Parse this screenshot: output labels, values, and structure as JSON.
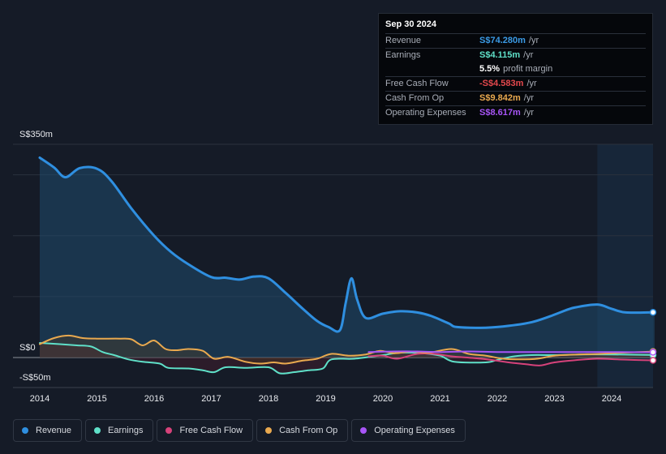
{
  "tooltip": {
    "date": "Sep 30 2024",
    "rows": [
      {
        "label": "Revenue",
        "value": "S$74.280m",
        "unit": "/yr",
        "color": "#3b9be6"
      },
      {
        "label": "Earnings",
        "value": "S$4.115m",
        "unit": "/yr",
        "color": "#5fe0c8"
      },
      {
        "label": "",
        "value": "5.5%",
        "unit": "profit margin",
        "color": "#ffffff"
      },
      {
        "label": "Free Cash Flow",
        "value": "-S$4.583m",
        "unit": "/yr",
        "color": "#e5484d"
      },
      {
        "label": "Cash From Op",
        "value": "S$9.842m",
        "unit": "/yr",
        "color": "#e9a94f"
      },
      {
        "label": "Operating Expenses",
        "value": "S$8.617m",
        "unit": "/yr",
        "color": "#a855f7"
      }
    ]
  },
  "legend": [
    {
      "label": "Revenue",
      "color": "#2f8fe0"
    },
    {
      "label": "Earnings",
      "color": "#5fe0c8"
    },
    {
      "label": "Free Cash Flow",
      "color": "#d6427a"
    },
    {
      "label": "Cash From Op",
      "color": "#e9a94f"
    },
    {
      "label": "Operating Expenses",
      "color": "#a855f7"
    }
  ],
  "chart_data": {
    "type": "line",
    "title": "",
    "ylabel_top": "S$350m",
    "ylabel_zero": "S$0",
    "ylabel_bottom": "-S$50m",
    "ylim": [
      -50,
      350
    ],
    "xlim": [
      2013.5,
      2024.8
    ],
    "x_ticks": [
      "2014",
      "2015",
      "2016",
      "2017",
      "2018",
      "2019",
      "2020",
      "2021",
      "2022",
      "2023",
      "2024"
    ],
    "highlight_from": 2023.75,
    "series": [
      {
        "name": "Revenue",
        "color": "#2f8fe0",
        "fill": true,
        "points": [
          [
            2014.0,
            328
          ],
          [
            2014.25,
            312
          ],
          [
            2014.45,
            296
          ],
          [
            2014.7,
            311
          ],
          [
            2015.0,
            310
          ],
          [
            2015.25,
            290
          ],
          [
            2015.6,
            245
          ],
          [
            2016.0,
            200
          ],
          [
            2016.3,
            173
          ],
          [
            2016.6,
            153
          ],
          [
            2017.0,
            132
          ],
          [
            2017.25,
            131
          ],
          [
            2017.5,
            128
          ],
          [
            2017.75,
            133
          ],
          [
            2018.0,
            130
          ],
          [
            2018.3,
            106
          ],
          [
            2018.6,
            80
          ],
          [
            2018.85,
            60
          ],
          [
            2019.05,
            50
          ],
          [
            2019.25,
            45
          ],
          [
            2019.35,
            90
          ],
          [
            2019.45,
            130
          ],
          [
            2019.55,
            95
          ],
          [
            2019.7,
            65
          ],
          [
            2020.0,
            72
          ],
          [
            2020.3,
            76
          ],
          [
            2020.6,
            74
          ],
          [
            2020.85,
            68
          ],
          [
            2021.15,
            56
          ],
          [
            2021.3,
            50
          ],
          [
            2021.8,
            49
          ],
          [
            2022.2,
            52
          ],
          [
            2022.6,
            58
          ],
          [
            2022.9,
            67
          ],
          [
            2023.1,
            74
          ],
          [
            2023.35,
            82
          ],
          [
            2023.75,
            87
          ],
          [
            2024.0,
            80
          ],
          [
            2024.25,
            74
          ],
          [
            2024.75,
            74.3
          ]
        ]
      },
      {
        "name": "Earnings",
        "color": "#5fe0c8",
        "fill": false,
        "points": [
          [
            2014.0,
            24
          ],
          [
            2014.35,
            22
          ],
          [
            2014.65,
            20
          ],
          [
            2014.9,
            18
          ],
          [
            2015.1,
            9
          ],
          [
            2015.3,
            4
          ],
          [
            2015.55,
            -3
          ],
          [
            2015.8,
            -7
          ],
          [
            2016.1,
            -10
          ],
          [
            2016.25,
            -17
          ],
          [
            2016.6,
            -18
          ],
          [
            2016.85,
            -21
          ],
          [
            2017.05,
            -24
          ],
          [
            2017.25,
            -16
          ],
          [
            2017.6,
            -17
          ],
          [
            2018.0,
            -16
          ],
          [
            2018.2,
            -26
          ],
          [
            2018.45,
            -24
          ],
          [
            2018.7,
            -21
          ],
          [
            2018.95,
            -18
          ],
          [
            2019.1,
            -3
          ],
          [
            2019.5,
            -2
          ],
          [
            2020.0,
            4
          ],
          [
            2020.3,
            8
          ],
          [
            2020.7,
            7
          ],
          [
            2021.0,
            3
          ],
          [
            2021.25,
            -7
          ],
          [
            2021.8,
            -8
          ],
          [
            2022.0,
            -4
          ],
          [
            2022.3,
            2
          ],
          [
            2022.6,
            4
          ],
          [
            2023.0,
            4
          ],
          [
            2023.5,
            5
          ],
          [
            2024.0,
            5
          ],
          [
            2024.75,
            4.1
          ]
        ]
      },
      {
        "name": "Free Cash Flow",
        "color": "#d6427a",
        "fill": false,
        "points": [
          [
            2019.75,
            2
          ],
          [
            2020.0,
            3
          ],
          [
            2020.25,
            -2
          ],
          [
            2020.6,
            6
          ],
          [
            2020.9,
            6
          ],
          [
            2021.2,
            2
          ],
          [
            2021.6,
            -1
          ],
          [
            2021.9,
            -4
          ],
          [
            2022.2,
            -8
          ],
          [
            2022.5,
            -11
          ],
          [
            2022.75,
            -13
          ],
          [
            2023.0,
            -8
          ],
          [
            2023.4,
            -4
          ],
          [
            2023.75,
            -2
          ],
          [
            2024.1,
            -3
          ],
          [
            2024.4,
            -4
          ],
          [
            2024.75,
            -4.6
          ]
        ]
      },
      {
        "name": "Cash From Op",
        "color": "#e9a94f",
        "fill": false,
        "points": [
          [
            2014.0,
            22
          ],
          [
            2014.25,
            32
          ],
          [
            2014.5,
            36
          ],
          [
            2014.75,
            32
          ],
          [
            2015.0,
            31
          ],
          [
            2015.4,
            31
          ],
          [
            2015.6,
            30
          ],
          [
            2015.8,
            20
          ],
          [
            2016.0,
            28
          ],
          [
            2016.2,
            14
          ],
          [
            2016.4,
            12
          ],
          [
            2016.6,
            14
          ],
          [
            2016.85,
            11
          ],
          [
            2017.05,
            -2
          ],
          [
            2017.3,
            1
          ],
          [
            2017.6,
            -7
          ],
          [
            2017.85,
            -10
          ],
          [
            2018.1,
            -8
          ],
          [
            2018.3,
            -10
          ],
          [
            2018.6,
            -5
          ],
          [
            2018.85,
            -2
          ],
          [
            2019.1,
            6
          ],
          [
            2019.4,
            3
          ],
          [
            2019.7,
            5
          ],
          [
            2019.95,
            11
          ],
          [
            2020.2,
            7
          ],
          [
            2020.5,
            10
          ],
          [
            2020.8,
            8
          ],
          [
            2021.2,
            14
          ],
          [
            2021.5,
            6
          ],
          [
            2021.8,
            3
          ],
          [
            2022.1,
            -2
          ],
          [
            2022.4,
            -3
          ],
          [
            2022.7,
            -2
          ],
          [
            2023.0,
            3
          ],
          [
            2023.4,
            5
          ],
          [
            2023.8,
            6
          ],
          [
            2024.2,
            8
          ],
          [
            2024.75,
            9.8
          ]
        ]
      },
      {
        "name": "Operating Expenses",
        "color": "#a855f7",
        "fill": false,
        "points": [
          [
            2019.75,
            9
          ],
          [
            2020.2,
            10
          ],
          [
            2020.6,
            10
          ],
          [
            2021.0,
            9
          ],
          [
            2021.5,
            10
          ],
          [
            2022.0,
            9
          ],
          [
            2022.5,
            9
          ],
          [
            2023.0,
            9
          ],
          [
            2023.5,
            9
          ],
          [
            2024.0,
            9
          ],
          [
            2024.75,
            8.6
          ]
        ]
      }
    ]
  }
}
